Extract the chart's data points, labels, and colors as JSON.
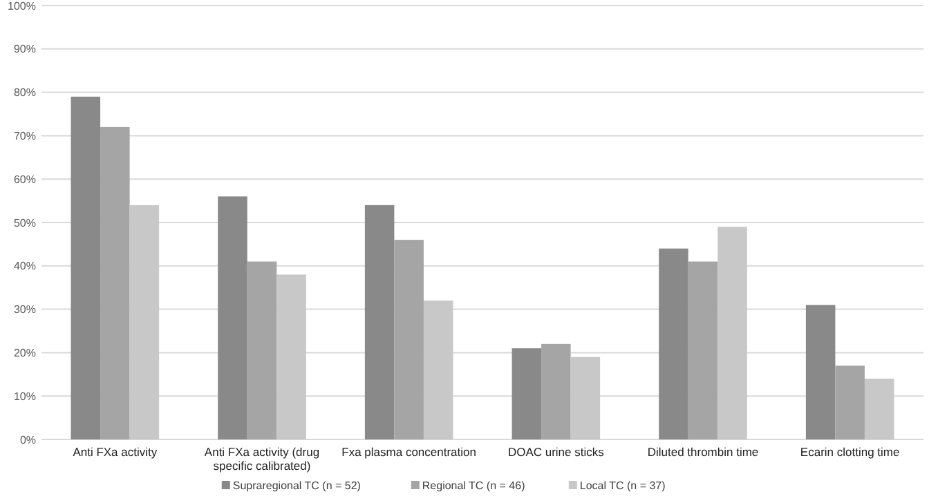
{
  "chart_data": {
    "type": "bar",
    "categories": [
      "Anti FXa activity",
      "Anti FXa activity (drug specific calibrated)",
      "Fxa plasma concentration",
      "DOAC urine sticks",
      "Diluted thrombin time",
      "Ecarin clotting time"
    ],
    "series": [
      {
        "name": "Supraregional TC (n = 52)",
        "color": "#898989",
        "values": [
          79,
          56,
          54,
          21,
          44,
          31
        ]
      },
      {
        "name": "Regional TC (n = 46)",
        "color": "#a5a5a5",
        "values": [
          72,
          41,
          46,
          22,
          41,
          17
        ]
      },
      {
        "name": "Local TC (n = 37)",
        "color": "#c8c8c8",
        "values": [
          54,
          38,
          32,
          19,
          49,
          14
        ]
      }
    ],
    "ylim": [
      0,
      100
    ],
    "yticks": [
      {
        "value": 0,
        "label": "0%"
      },
      {
        "value": 10,
        "label": "10%"
      },
      {
        "value": 20,
        "label": "20%"
      },
      {
        "value": 30,
        "label": "30%"
      },
      {
        "value": 40,
        "label": "40%"
      },
      {
        "value": 50,
        "label": "50%"
      },
      {
        "value": 60,
        "label": "60%"
      },
      {
        "value": 70,
        "label": "70%"
      },
      {
        "value": 80,
        "label": "80%"
      },
      {
        "value": 90,
        "label": "90%"
      },
      {
        "value": 100,
        "label": "100%"
      }
    ],
    "grid": "y",
    "legend": "bottom"
  }
}
